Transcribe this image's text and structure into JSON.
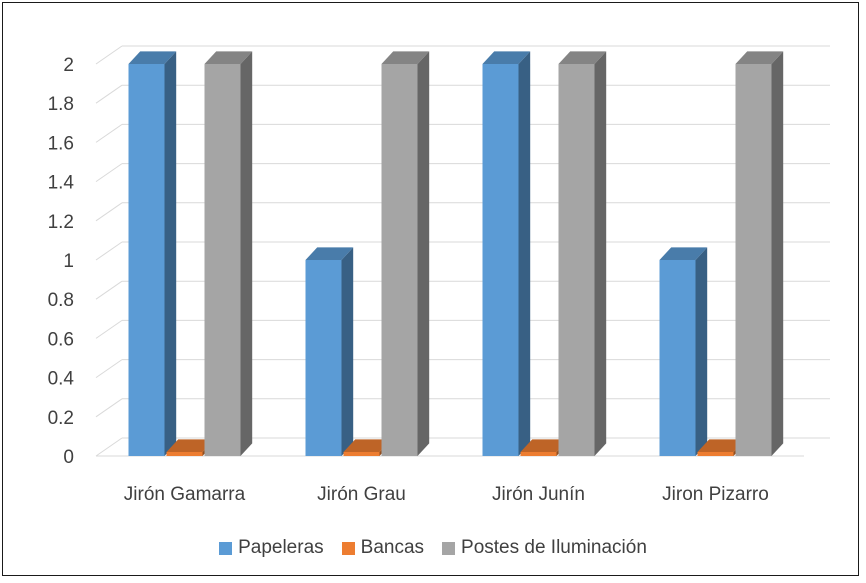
{
  "chart_data": {
    "type": "bar",
    "style": "3d-clustered-column",
    "categories": [
      "Jirón Gamarra",
      "Jirón Grau",
      "Jirón Junín",
      "Jiron Pizarro"
    ],
    "series": [
      {
        "name": "Papeleras",
        "values": [
          2,
          1,
          2,
          1
        ],
        "color": "#5b9bd5"
      },
      {
        "name": "Bancas",
        "values": [
          0,
          0,
          0,
          0
        ],
        "color": "#ed7d31"
      },
      {
        "name": "Postes de Iluminación",
        "values": [
          2,
          2,
          2,
          2
        ],
        "color": "#a5a5a5"
      }
    ],
    "title": "",
    "xlabel": "",
    "ylabel": "",
    "ylim": [
      0,
      2
    ],
    "yticks": [
      "0",
      "0.2",
      "0.4",
      "0.6",
      "0.8",
      "1",
      "1.2",
      "1.4",
      "1.6",
      "1.8",
      "2"
    ],
    "grid": true,
    "legend_position": "bottom"
  }
}
